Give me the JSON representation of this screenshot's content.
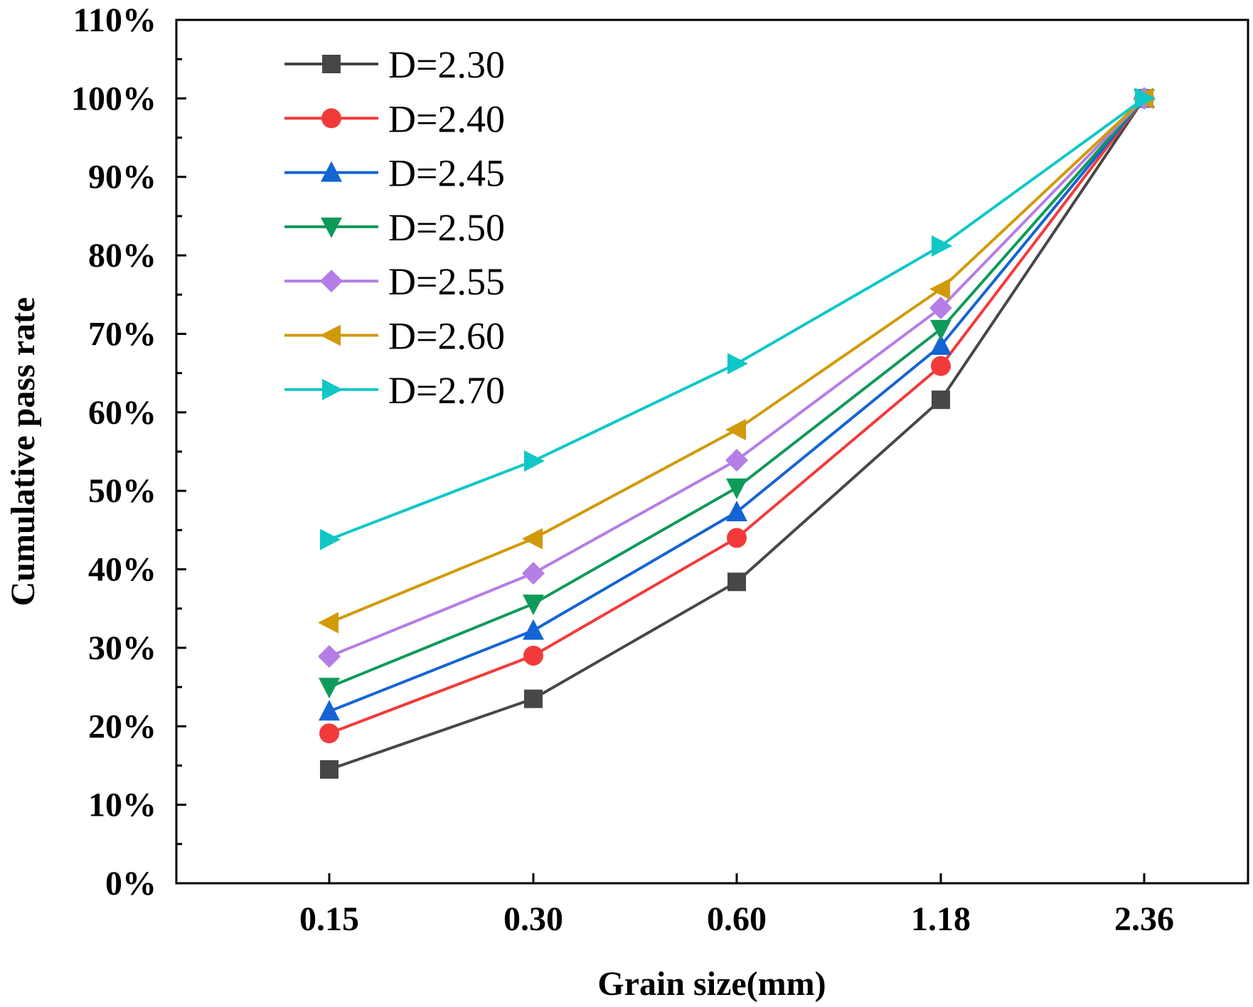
{
  "chart_data": {
    "type": "line",
    "title": "",
    "xlabel": "Grain size(mm)",
    "ylabel": "Cumulative pass rate",
    "categories": [
      "0.15",
      "0.30",
      "0.60",
      "1.18",
      "2.36"
    ],
    "ylim": [
      0,
      110
    ],
    "y_ticks": [
      0,
      10,
      20,
      30,
      40,
      50,
      60,
      70,
      80,
      90,
      100,
      110
    ],
    "y_tick_labels": [
      "0%",
      "10%",
      "20%",
      "30%",
      "40%",
      "50%",
      "60%",
      "70%",
      "80%",
      "90%",
      "100%",
      "110%"
    ],
    "grid": false,
    "legend_position": "top-left",
    "series": [
      {
        "name": "D=2.30",
        "marker": "square",
        "color": "#474747",
        "values": [
          14.5,
          23.5,
          38.4,
          61.6,
          100
        ]
      },
      {
        "name": "D=2.40",
        "marker": "circle",
        "color": "#f33a3a",
        "values": [
          19.1,
          29.0,
          44.0,
          65.9,
          100
        ]
      },
      {
        "name": "D=2.45",
        "marker": "triangle-up",
        "color": "#1464d4",
        "values": [
          21.9,
          32.2,
          47.3,
          68.5,
          100
        ]
      },
      {
        "name": "D=2.50",
        "marker": "triangle-down",
        "color": "#0f9a5a",
        "values": [
          25.0,
          35.6,
          50.4,
          70.6,
          100
        ]
      },
      {
        "name": "D=2.55",
        "marker": "diamond",
        "color": "#b57de6",
        "values": [
          28.9,
          39.5,
          53.9,
          73.3,
          100
        ]
      },
      {
        "name": "D=2.60",
        "marker": "triangle-left",
        "color": "#d19a09",
        "values": [
          33.2,
          43.9,
          57.8,
          75.7,
          100
        ]
      },
      {
        "name": "D=2.70",
        "marker": "triangle-right",
        "color": "#10c7c7",
        "values": [
          43.8,
          53.8,
          66.2,
          81.2,
          100
        ]
      }
    ]
  }
}
